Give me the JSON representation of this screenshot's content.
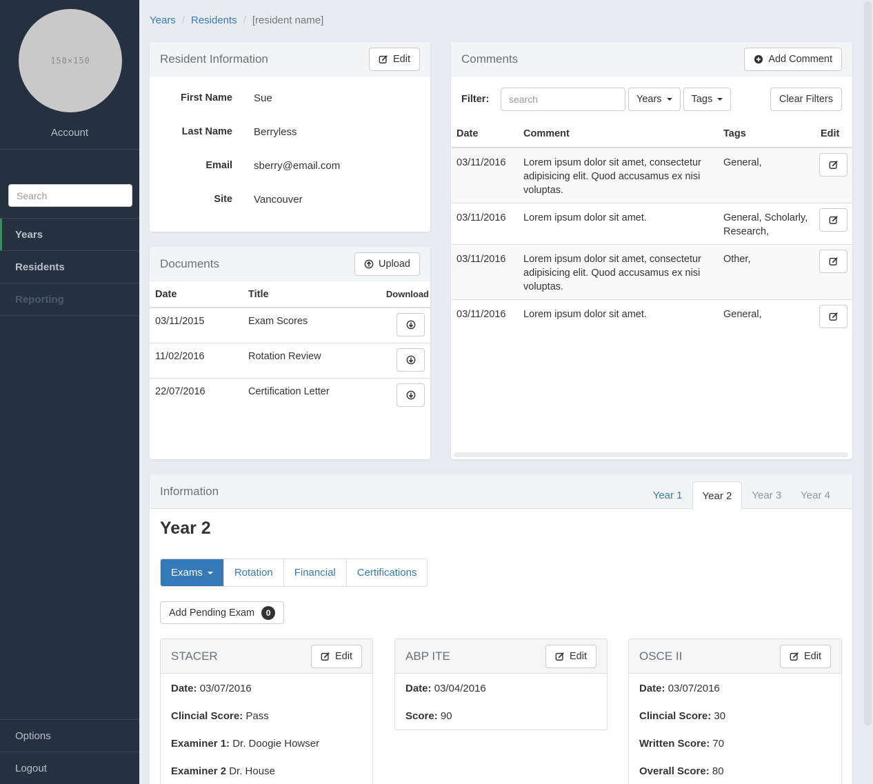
{
  "sidebar": {
    "avatar_text": "150×150",
    "account_label": "Account",
    "search_placeholder": "Search",
    "nav": [
      {
        "label": "Years"
      },
      {
        "label": "Residents"
      },
      {
        "label": "Reporting"
      }
    ],
    "bottom": [
      {
        "label": "Options"
      },
      {
        "label": "Logout"
      }
    ]
  },
  "breadcrumb": {
    "items": [
      "Years",
      "Residents"
    ],
    "current": "[resident name]"
  },
  "resident_info": {
    "title": "Resident Information",
    "edit_label": "Edit",
    "fields": [
      {
        "label": "First Name",
        "value": "Sue"
      },
      {
        "label": "Last Name",
        "value": "Berryless"
      },
      {
        "label": "Email",
        "value": "sberry@email.com"
      },
      {
        "label": "Site",
        "value": "Vancouver"
      }
    ]
  },
  "documents": {
    "title": "Documents",
    "upload_label": "Upload",
    "columns": [
      "Date",
      "Title",
      "Download"
    ],
    "rows": [
      {
        "date": "03/11/2015",
        "title": "Exam Scores"
      },
      {
        "date": "11/02/2016",
        "title": "Rotation Review"
      },
      {
        "date": "22/07/2016",
        "title": "Certification Letter"
      }
    ]
  },
  "comments": {
    "title": "Comments",
    "add_label": "Add Comment",
    "filter_label": "Filter:",
    "search_placeholder": "search",
    "years_label": "Years",
    "tags_label": "Tags",
    "clear_label": "Clear Filters",
    "columns": [
      "Date",
      "Comment",
      "Tags",
      "Edit"
    ],
    "rows": [
      {
        "date": "03/11/2016",
        "comment": "Lorem ipsum dolor sit amet, consectetur adipisicing elit. Quod accusamus ex nisi voluptas.",
        "tags": "General,"
      },
      {
        "date": "03/11/2016",
        "comment": "Lorem ipsum dolor sit amet.",
        "tags": "General, Scholarly, Research,"
      },
      {
        "date": "03/11/2016",
        "comment": "Lorem ipsum dolor sit amet, consectetur adipisicing elit. Quod accusamus ex nisi voluptas.",
        "tags": "Other,"
      },
      {
        "date": "03/11/2016",
        "comment": "Lorem ipsum dolor sit amet.",
        "tags": "General,"
      }
    ]
  },
  "information": {
    "title": "Information",
    "tabs": [
      "Year 1",
      "Year 2",
      "Year 3",
      "Year 4"
    ],
    "active_tab": "Year 2",
    "heading": "Year 2",
    "subtabs": [
      "Exams",
      "Rotation",
      "Financial",
      "Certifications"
    ],
    "add_pending_label": "Add Pending Exam",
    "pending_count": "0",
    "exams": [
      {
        "name": "STACER",
        "edit_label": "Edit",
        "lines": [
          {
            "k": "Date:",
            "v": "03/07/2016"
          },
          {
            "k": "Clincial Score:",
            "v": "Pass"
          },
          {
            "k": "Examiner 1:",
            "v": "Dr. Doogie Howser"
          },
          {
            "k": "Examiner 2",
            "v": "Dr. House"
          }
        ]
      },
      {
        "name": "ABP ITE",
        "edit_label": "Edit",
        "lines": [
          {
            "k": "Date:",
            "v": "03/04/2016"
          },
          {
            "k": "Score:",
            "v": "90"
          }
        ]
      },
      {
        "name": "OSCE II",
        "edit_label": "Edit",
        "lines": [
          {
            "k": "Date:",
            "v": "03/07/2016"
          },
          {
            "k": "Clincial Score:",
            "v": "30"
          },
          {
            "k": "Written Score:",
            "v": "70"
          },
          {
            "k": "Overall Score:",
            "v": "80"
          }
        ]
      }
    ]
  }
}
